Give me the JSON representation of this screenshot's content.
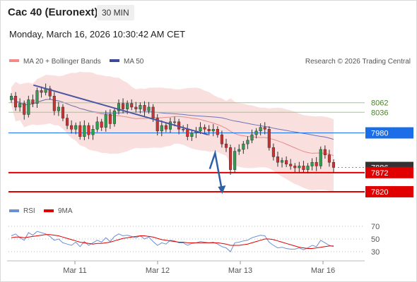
{
  "header": {
    "instrument": "Cac 40 (Euronext)",
    "timeframe": "30 MIN",
    "datetime": "Monday, March 16, 2026 10:30:42 AM CET"
  },
  "legend": {
    "ma20_label": "MA 20 + Bollinger Bands",
    "ma50_label": "MA 50",
    "copyright": "Research © 2026 Trading Central",
    "rsi_label": "RSI",
    "ma9_label": "9MA"
  },
  "colors": {
    "candle_up": "#2e9e4f",
    "candle_down": "#d32f2f",
    "bollinger": "#f7caca",
    "ma20": "#e88a8a",
    "ma50": "#6a74b8",
    "trendline": "#4a55a2",
    "support": "#e00000",
    "pivot": "#1b6ee8",
    "resistance_lines": "#9bc98b",
    "forecast_arrow": "#2f5fa5",
    "rsi": "#6b8fd4",
    "rsi_ma": "#e00000"
  },
  "chart_data": [
    {
      "type": "candlestick",
      "x_ticks": [
        "Mar 11",
        "Mar 12",
        "Mar 13",
        "Mar 16"
      ],
      "ylim": [
        7795,
        8140
      ],
      "price_levels": [
        {
          "value": 8062,
          "label": "8062",
          "kind": "resistance"
        },
        {
          "value": 8036,
          "label": "8036",
          "kind": "resistance"
        },
        {
          "value": 7980,
          "label": "7980",
          "kind": "pivot"
        },
        {
          "value": 7886,
          "label": "7886",
          "kind": "last"
        },
        {
          "value": 7872,
          "label": "7872",
          "kind": "support"
        },
        {
          "value": 7820,
          "label": "7820",
          "kind": "support"
        }
      ],
      "trendline": [
        [
          0.07,
          8110
        ],
        [
          0.56,
          7975
        ]
      ],
      "forecast": [
        [
          0.565,
          7882
        ],
        [
          0.58,
          7925
        ],
        [
          0.6,
          7820
        ]
      ],
      "close": [
        8080,
        8050,
        8060,
        8030,
        8070,
        8060,
        8095,
        8090,
        8100,
        8080,
        8040,
        8050,
        8020,
        8000,
        7990,
        8000,
        7970,
        8000,
        7975,
        7990,
        8010,
        7995,
        8030,
        8005,
        8040,
        8060,
        8045,
        8060,
        8050,
        8045,
        8055,
        8040,
        8050,
        8020,
        7985,
        8000,
        7990,
        8010,
        8010,
        7990,
        7990,
        7970,
        7980,
        7985,
        7995,
        7990,
        7985,
        7990,
        7975,
        7950,
        7940,
        7880,
        7930,
        7935,
        7950,
        7960,
        7975,
        7985,
        7995,
        7990,
        7940,
        7915,
        7900,
        7905,
        7895,
        7890,
        7885,
        7890,
        7880,
        7890,
        7900,
        7890,
        7935,
        7920,
        7900,
        7886
      ],
      "open": [
        8070,
        8080,
        8050,
        8060,
        8030,
        8070,
        8060,
        8095,
        8090,
        8100,
        8080,
        8040,
        8050,
        8020,
        8000,
        7990,
        8000,
        7970,
        8000,
        7975,
        7990,
        8010,
        7995,
        8030,
        8005,
        8040,
        8060,
        8045,
        8060,
        8050,
        8045,
        8055,
        8040,
        8050,
        8020,
        7985,
        8000,
        7990,
        8010,
        8010,
        7990,
        7990,
        7970,
        7980,
        7985,
        7995,
        7990,
        7985,
        7990,
        7975,
        7950,
        7940,
        7880,
        7930,
        7935,
        7950,
        7960,
        7975,
        7985,
        7995,
        7990,
        7940,
        7915,
        7900,
        7905,
        7895,
        7890,
        7885,
        7890,
        7880,
        7890,
        7900,
        7890,
        7935,
        7920,
        7900
      ]
    },
    {
      "type": "line",
      "name": "RSI",
      "ylim": [
        20,
        80
      ],
      "y_ticks": [
        70,
        50,
        30
      ],
      "rsi": [
        55,
        58,
        52,
        48,
        60,
        56,
        62,
        60,
        58,
        54,
        48,
        50,
        44,
        42,
        40,
        45,
        38,
        46,
        40,
        44,
        48,
        45,
        52,
        46,
        54,
        58,
        55,
        56,
        54,
        52,
        55,
        50,
        53,
        46,
        40,
        44,
        42,
        48,
        47,
        44,
        44,
        40,
        43,
        44,
        46,
        45,
        44,
        45,
        42,
        38,
        36,
        30,
        44,
        45,
        47,
        48,
        52,
        54,
        56,
        55,
        45,
        40,
        36,
        37,
        35,
        34,
        34,
        36,
        33,
        36,
        40,
        38,
        48,
        44,
        40,
        38
      ],
      "ma9": [
        52,
        53,
        53,
        52,
        53,
        54,
        55,
        56,
        57,
        57,
        56,
        55,
        53,
        51,
        49,
        47,
        45,
        44,
        43,
        42,
        43,
        43,
        44,
        45,
        47,
        49,
        51,
        52,
        53,
        54,
        55,
        55,
        54,
        53,
        51,
        49,
        48,
        47,
        46,
        45,
        45,
        44,
        44,
        44,
        44,
        44,
        44,
        44,
        44,
        43,
        42,
        40,
        40,
        40,
        41,
        42,
        44,
        46,
        48,
        50,
        50,
        49,
        47,
        45,
        43,
        41,
        39,
        37,
        36,
        35,
        35,
        36,
        37,
        38,
        39,
        39
      ]
    }
  ]
}
